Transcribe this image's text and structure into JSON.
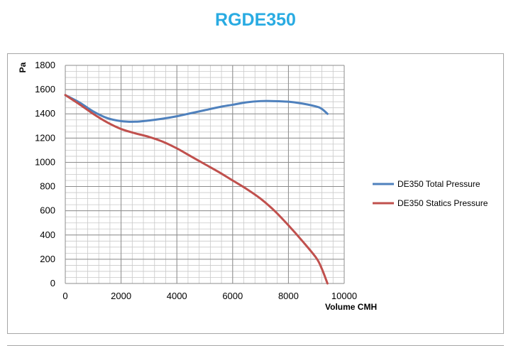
{
  "page": {
    "title": "RGDE350"
  },
  "chart_data": {
    "type": "line",
    "title": "RGDE350",
    "xlabel": "Volume CMH",
    "ylabel": "Pa",
    "xlim": [
      0,
      10000
    ],
    "ylim": [
      0,
      1800
    ],
    "x_ticks": [
      "0",
      "2000",
      "4000",
      "6000",
      "8000",
      "10000"
    ],
    "y_ticks": [
      "0",
      "200",
      "400",
      "600",
      "800",
      "1000",
      "1200",
      "1400",
      "1600",
      "1800"
    ],
    "grid": "on",
    "legend_position": "right",
    "series": [
      {
        "name": "DE350 Total Pressure",
        "color": "#4f81bd",
        "x": [
          0,
          500,
          1000,
          1500,
          2000,
          2500,
          3000,
          3500,
          4000,
          4500,
          5000,
          5500,
          6000,
          6500,
          7000,
          7500,
          8000,
          8500,
          9000,
          9200,
          9400
        ],
        "y": [
          1555,
          1495,
          1420,
          1365,
          1340,
          1335,
          1345,
          1360,
          1380,
          1405,
          1430,
          1455,
          1475,
          1495,
          1505,
          1505,
          1500,
          1485,
          1460,
          1440,
          1400
        ]
      },
      {
        "name": "DE350 Statics Pressure",
        "color": "#c0504d",
        "x": [
          0,
          500,
          1000,
          1500,
          2000,
          2500,
          3000,
          3500,
          4000,
          4500,
          5000,
          5500,
          6000,
          6500,
          7000,
          7500,
          8000,
          8500,
          9000,
          9200,
          9400
        ],
        "y": [
          1555,
          1480,
          1400,
          1330,
          1275,
          1240,
          1210,
          1170,
          1115,
          1050,
          985,
          920,
          850,
          780,
          700,
          600,
          480,
          350,
          210,
          120,
          0
        ]
      }
    ]
  }
}
